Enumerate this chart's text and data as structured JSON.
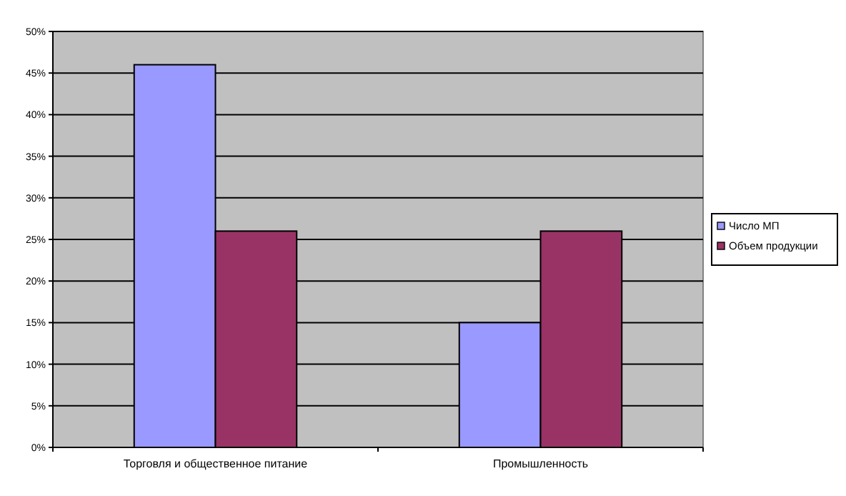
{
  "chart_data": {
    "type": "bar",
    "categories": [
      "Торговля и общественное питание",
      "Промышленность"
    ],
    "series": [
      {
        "name": "Число МП",
        "color": "#9999ff",
        "values": [
          46,
          15
        ]
      },
      {
        "name": "Объем продукции",
        "color": "#993366",
        "values": [
          26,
          26
        ]
      }
    ],
    "ylim": [
      0,
      50
    ],
    "yticks": [
      {
        "value": 0,
        "label": "0%"
      },
      {
        "value": 5,
        "label": "5%"
      },
      {
        "value": 10,
        "label": "10%"
      },
      {
        "value": 15,
        "label": "15%"
      },
      {
        "value": 20,
        "label": "20%"
      },
      {
        "value": 25,
        "label": "25%"
      },
      {
        "value": 30,
        "label": "30%"
      },
      {
        "value": 35,
        "label": "35%"
      },
      {
        "value": 40,
        "label": "40%"
      },
      {
        "value": 45,
        "label": "45%"
      },
      {
        "value": 50,
        "label": "50%"
      }
    ],
    "grid": "y",
    "legend": "right"
  }
}
